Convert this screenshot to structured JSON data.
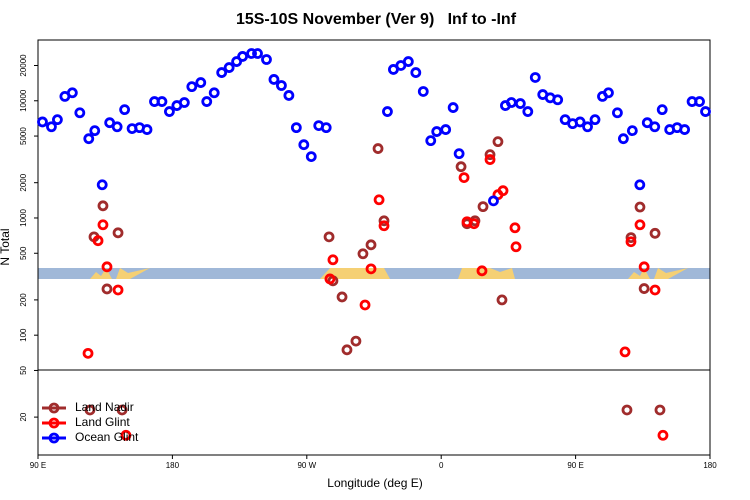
{
  "chart_data": {
    "type": "scatter",
    "title": "15S-10S November (Ver 9)   Inf to -Inf",
    "x_label": "Longitude (deg E)",
    "y_label": "N Total",
    "xlim": [
      90,
      540
    ],
    "xticks": [
      {
        "value": 90,
        "label": "90 E"
      },
      {
        "value": 180,
        "label": "180"
      },
      {
        "value": 270,
        "label": "90 W"
      },
      {
        "value": 360,
        "label": "0"
      },
      {
        "value": 450,
        "label": "90 E"
      },
      {
        "value": 540,
        "label": "180"
      }
    ],
    "ylim": [
      9.5,
      33000
    ],
    "y_scale": "log",
    "yticks": [
      20,
      50,
      100,
      200,
      500,
      1000,
      2000,
      5000,
      10000,
      20000
    ],
    "legend_position": "lower left",
    "series": [
      {
        "name": "Land Nadir",
        "color": "#a02c2c",
        "x": [
          124.8,
          127.5,
          133.5,
          136.2,
          143.6,
          146.3,
          284.9,
          287.5,
          293.6,
          296.9,
          302.9,
          307.6,
          313,
          317.7,
          321.7,
          373.3,
          377.3,
          382.6,
          388,
          392.7,
          398,
          400.7,
          484.4,
          487.1,
          493.1,
          495.9,
          503.2,
          506.5
        ],
        "values": [
          23,
          690,
          1270,
          248,
          747,
          23,
          690,
          291,
          212,
          75,
          89,
          495,
          590,
          3910,
          946,
          2740,
          893,
          946,
          1250,
          3470,
          4480,
          200,
          23,
          680,
          1240,
          250,
          740,
          23
        ]
      },
      {
        "name": "Land Glint",
        "color": "#ff0000",
        "x": [
          123.5,
          130.2,
          133.5,
          136.2,
          143.6,
          148.9,
          285.5,
          287.5,
          309,
          313,
          318.4,
          321.7,
          375.3,
          377.3,
          382,
          387.3,
          392.7,
          398,
          401.4,
          409.4,
          410.1,
          483.1,
          487.1,
          493.1,
          495.9,
          503.2,
          508.5
        ],
        "values": [
          70,
          640,
          875,
          383,
          243,
          14,
          302,
          440,
          181,
          368,
          1430,
          858,
          2210,
          929,
          893,
          354,
          3150,
          1580,
          1710,
          825,
          568,
          72,
          627,
          875,
          383,
          243,
          14
        ]
      },
      {
        "name": "Ocean Glint",
        "color": "#0000ff",
        "x": [
          93,
          99,
          103,
          108,
          113,
          118,
          124,
          128,
          133,
          138,
          143,
          148,
          153,
          158,
          163,
          168,
          173,
          178,
          183,
          188,
          193,
          199,
          203,
          208,
          213,
          218,
          223,
          227,
          233,
          237,
          243,
          248,
          253,
          258,
          263,
          268,
          273,
          278,
          283,
          324,
          328,
          333,
          338,
          343,
          348,
          353,
          357,
          363,
          368,
          372,
          395,
          403,
          407,
          413,
          418,
          423,
          428,
          433,
          438,
          443,
          448,
          453,
          458,
          463,
          468,
          472,
          478,
          482,
          488,
          493,
          498,
          503,
          508,
          513,
          518,
          523,
          528,
          533,
          537
        ],
        "values": [
          6600,
          6000,
          6900,
          10900,
          11700,
          7900,
          4750,
          5560,
          1920,
          6500,
          6000,
          8400,
          5790,
          5900,
          5680,
          9850,
          9850,
          8090,
          9100,
          9660,
          13200,
          14300,
          9850,
          11700,
          17400,
          19200,
          21600,
          23900,
          25300,
          25300,
          22500,
          15200,
          13500,
          11100,
          5900,
          4220,
          3340,
          6140,
          5900,
          8090,
          18500,
          20000,
          21600,
          17400,
          12000,
          4570,
          5460,
          5680,
          8750,
          3540,
          1400,
          9100,
          9660,
          9470,
          8090,
          15800,
          11300,
          10600,
          10200,
          6900,
          6380,
          6600,
          6000,
          6900,
          10900,
          11700,
          7900,
          4750,
          5560,
          1920,
          6500,
          6000,
          8400,
          5680,
          5900,
          5680,
          9850,
          9850,
          8090
        ]
      }
    ]
  }
}
